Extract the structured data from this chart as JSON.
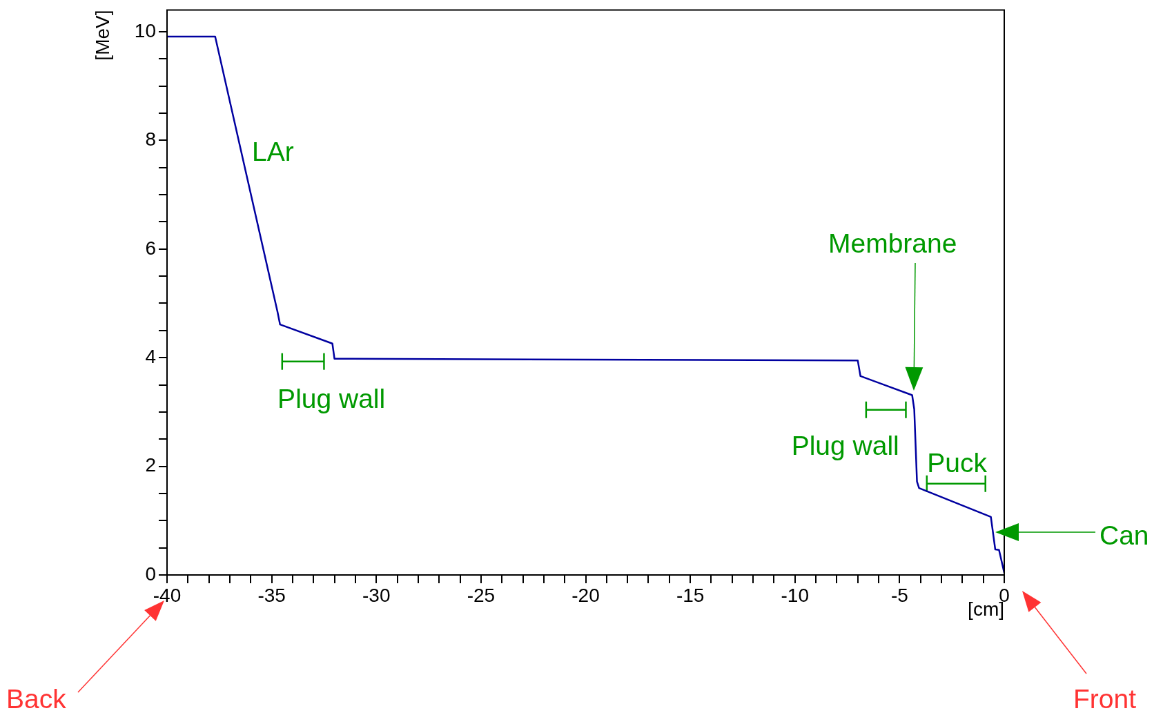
{
  "chart_data": {
    "type": "line",
    "xlabel": "[cm]",
    "ylabel": "[MeV]",
    "series": [
      {
        "color": "#0000a0",
        "x": [
          -40,
          -37.7,
          -34.72,
          -34.6,
          -32.1,
          -32.0,
          -7.0,
          -6.87,
          -4.4,
          -4.3,
          -4.17,
          -4.07,
          -0.64,
          -0.43,
          -0.25,
          0
        ],
        "values": [
          9.91,
          9.91,
          4.84,
          4.61,
          4.26,
          3.98,
          3.95,
          3.66,
          3.31,
          3.05,
          1.72,
          1.6,
          1.07,
          0.47,
          0.46,
          0.04
        ]
      },
      {
        "color": "#009900",
        "x": [
          -34.5,
          -32.5
        ],
        "values": [
          3.93,
          3.93
        ]
      },
      {
        "color": "#009900",
        "x": [
          -6.6,
          -4.7
        ],
        "values": [
          3.04,
          3.04
        ]
      },
      {
        "color": "#009900",
        "x": [
          -3.7,
          -0.9
        ],
        "values": [
          1.68,
          1.68
        ]
      }
    ],
    "xlim": [
      -40,
      0
    ],
    "xticks": [
      -40,
      {
        "value": -39,
        "label": null
      },
      {
        "value": -38,
        "label": null
      },
      {
        "value": -37,
        "label": null
      },
      {
        "value": -36,
        "label": null
      },
      -35,
      {
        "value": -34,
        "label": null
      },
      {
        "value": -33,
        "label": null
      },
      {
        "value": -32,
        "label": null
      },
      {
        "value": -31,
        "label": null
      },
      -30,
      {
        "value": -29,
        "label": null
      },
      {
        "value": -28,
        "label": null
      },
      {
        "value": -27,
        "label": null
      },
      {
        "value": -26,
        "label": null
      },
      -25,
      {
        "value": -24,
        "label": null
      },
      {
        "value": -23,
        "label": null
      },
      {
        "value": -22,
        "label": null
      },
      {
        "value": -21,
        "label": null
      },
      -20,
      {
        "value": -19,
        "label": null
      },
      {
        "value": -18,
        "label": null
      },
      {
        "value": -17,
        "label": null
      },
      {
        "value": -16,
        "label": null
      },
      -15,
      {
        "value": -14,
        "label": null
      },
      {
        "value": -13,
        "label": null
      },
      {
        "value": -12,
        "label": null
      },
      {
        "value": -11,
        "label": null
      },
      -10,
      {
        "value": -9,
        "label": null
      },
      {
        "value": -8,
        "label": null
      },
      {
        "value": -7,
        "label": null
      },
      {
        "value": -6,
        "label": null
      },
      -5,
      {
        "value": -4,
        "label": null
      },
      {
        "value": -3,
        "label": null
      },
      {
        "value": -2,
        "label": null
      },
      {
        "value": -1,
        "label": null
      },
      0
    ],
    "ylim": [
      0,
      10.4
    ],
    "yticks": [
      0,
      {
        "value": 0.5,
        "label": null
      },
      {
        "value": 1,
        "label": null
      },
      {
        "value": 1.5,
        "label": null
      },
      2,
      {
        "value": 2.5,
        "label": null
      },
      {
        "value": 3,
        "label": null
      },
      {
        "value": 3.5,
        "label": null
      },
      4,
      {
        "value": 4.5,
        "label": null
      },
      {
        "value": 5,
        "label": null
      },
      {
        "value": 5.5,
        "label": null
      },
      6,
      {
        "value": 6.5,
        "label": null
      },
      {
        "value": 7,
        "label": null
      },
      {
        "value": 7.5,
        "label": null
      },
      8,
      {
        "value": 8.5,
        "label": null
      },
      {
        "value": 9,
        "label": null
      },
      {
        "value": 9.5,
        "label": null
      },
      10
    ],
    "annotations": [
      "LAr",
      {
        "text": "Plug wall",
        "x": -33.5,
        "y": 3.93
      },
      {
        "text": "Plug wall",
        "x": -5.65,
        "y": 3.04
      },
      {
        "text": "Puck",
        "x": -2.3,
        "y": 1.68
      },
      "Membrane",
      "Can",
      "Back",
      "Front"
    ],
    "grid": false,
    "legend": false,
    "marker": "none",
    "line_style": "solid"
  }
}
